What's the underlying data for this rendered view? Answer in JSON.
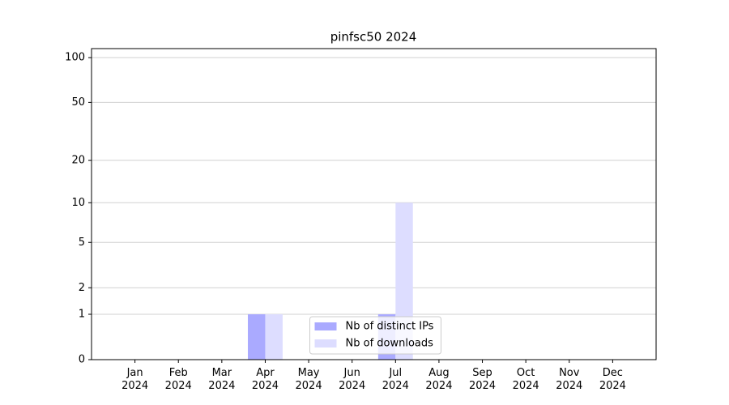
{
  "chart_data": {
    "type": "bar",
    "title": "pinfsc50 2024",
    "categories": [
      "Jan\n2024",
      "Feb\n2024",
      "Mar\n2024",
      "Apr\n2024",
      "May\n2024",
      "Jun\n2024",
      "Jul\n2024",
      "Aug\n2024",
      "Sep\n2024",
      "Oct\n2024",
      "Nov\n2024",
      "Dec\n2024"
    ],
    "series": [
      {
        "name": "Nb of distinct IPs",
        "color": "#aaaaff",
        "values": [
          0,
          0,
          0,
          1,
          0,
          0,
          1,
          0,
          0,
          0,
          0,
          0
        ]
      },
      {
        "name": "Nb of downloads",
        "color": "#ddddff",
        "values": [
          0,
          0,
          0,
          1,
          0,
          0,
          10,
          0,
          0,
          0,
          0,
          0
        ]
      }
    ],
    "yscale": "log1p",
    "ylim": [
      0,
      115
    ],
    "yticks": [
      0,
      1,
      2,
      5,
      10,
      20,
      50,
      100
    ],
    "grid": true,
    "legend": "lower center"
  }
}
